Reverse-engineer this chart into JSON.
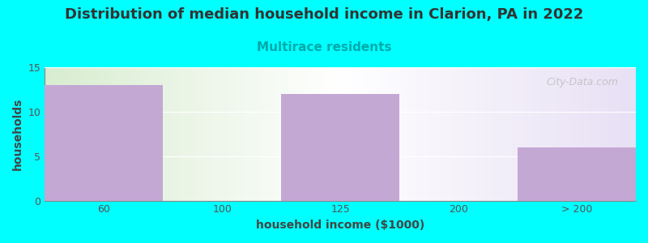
{
  "title": "Distribution of median household income in Clarion, PA in 2022",
  "subtitle": "Multirace residents",
  "xlabel": "household income ($1000)",
  "ylabel": "households",
  "bar_labels": [
    "60",
    "100",
    "125",
    "200",
    "> 200"
  ],
  "bar_values": [
    13,
    0,
    12,
    0,
    6
  ],
  "bar_color": "#C4A8D4",
  "ylim": [
    0,
    15
  ],
  "yticks": [
    0,
    5,
    10,
    15
  ],
  "background_color": "#00FFFF",
  "title_fontsize": 13,
  "subtitle_fontsize": 11,
  "subtitle_color": "#00AAAA",
  "axis_label_fontsize": 10,
  "tick_fontsize": 9,
  "watermark": "City-Data.com"
}
